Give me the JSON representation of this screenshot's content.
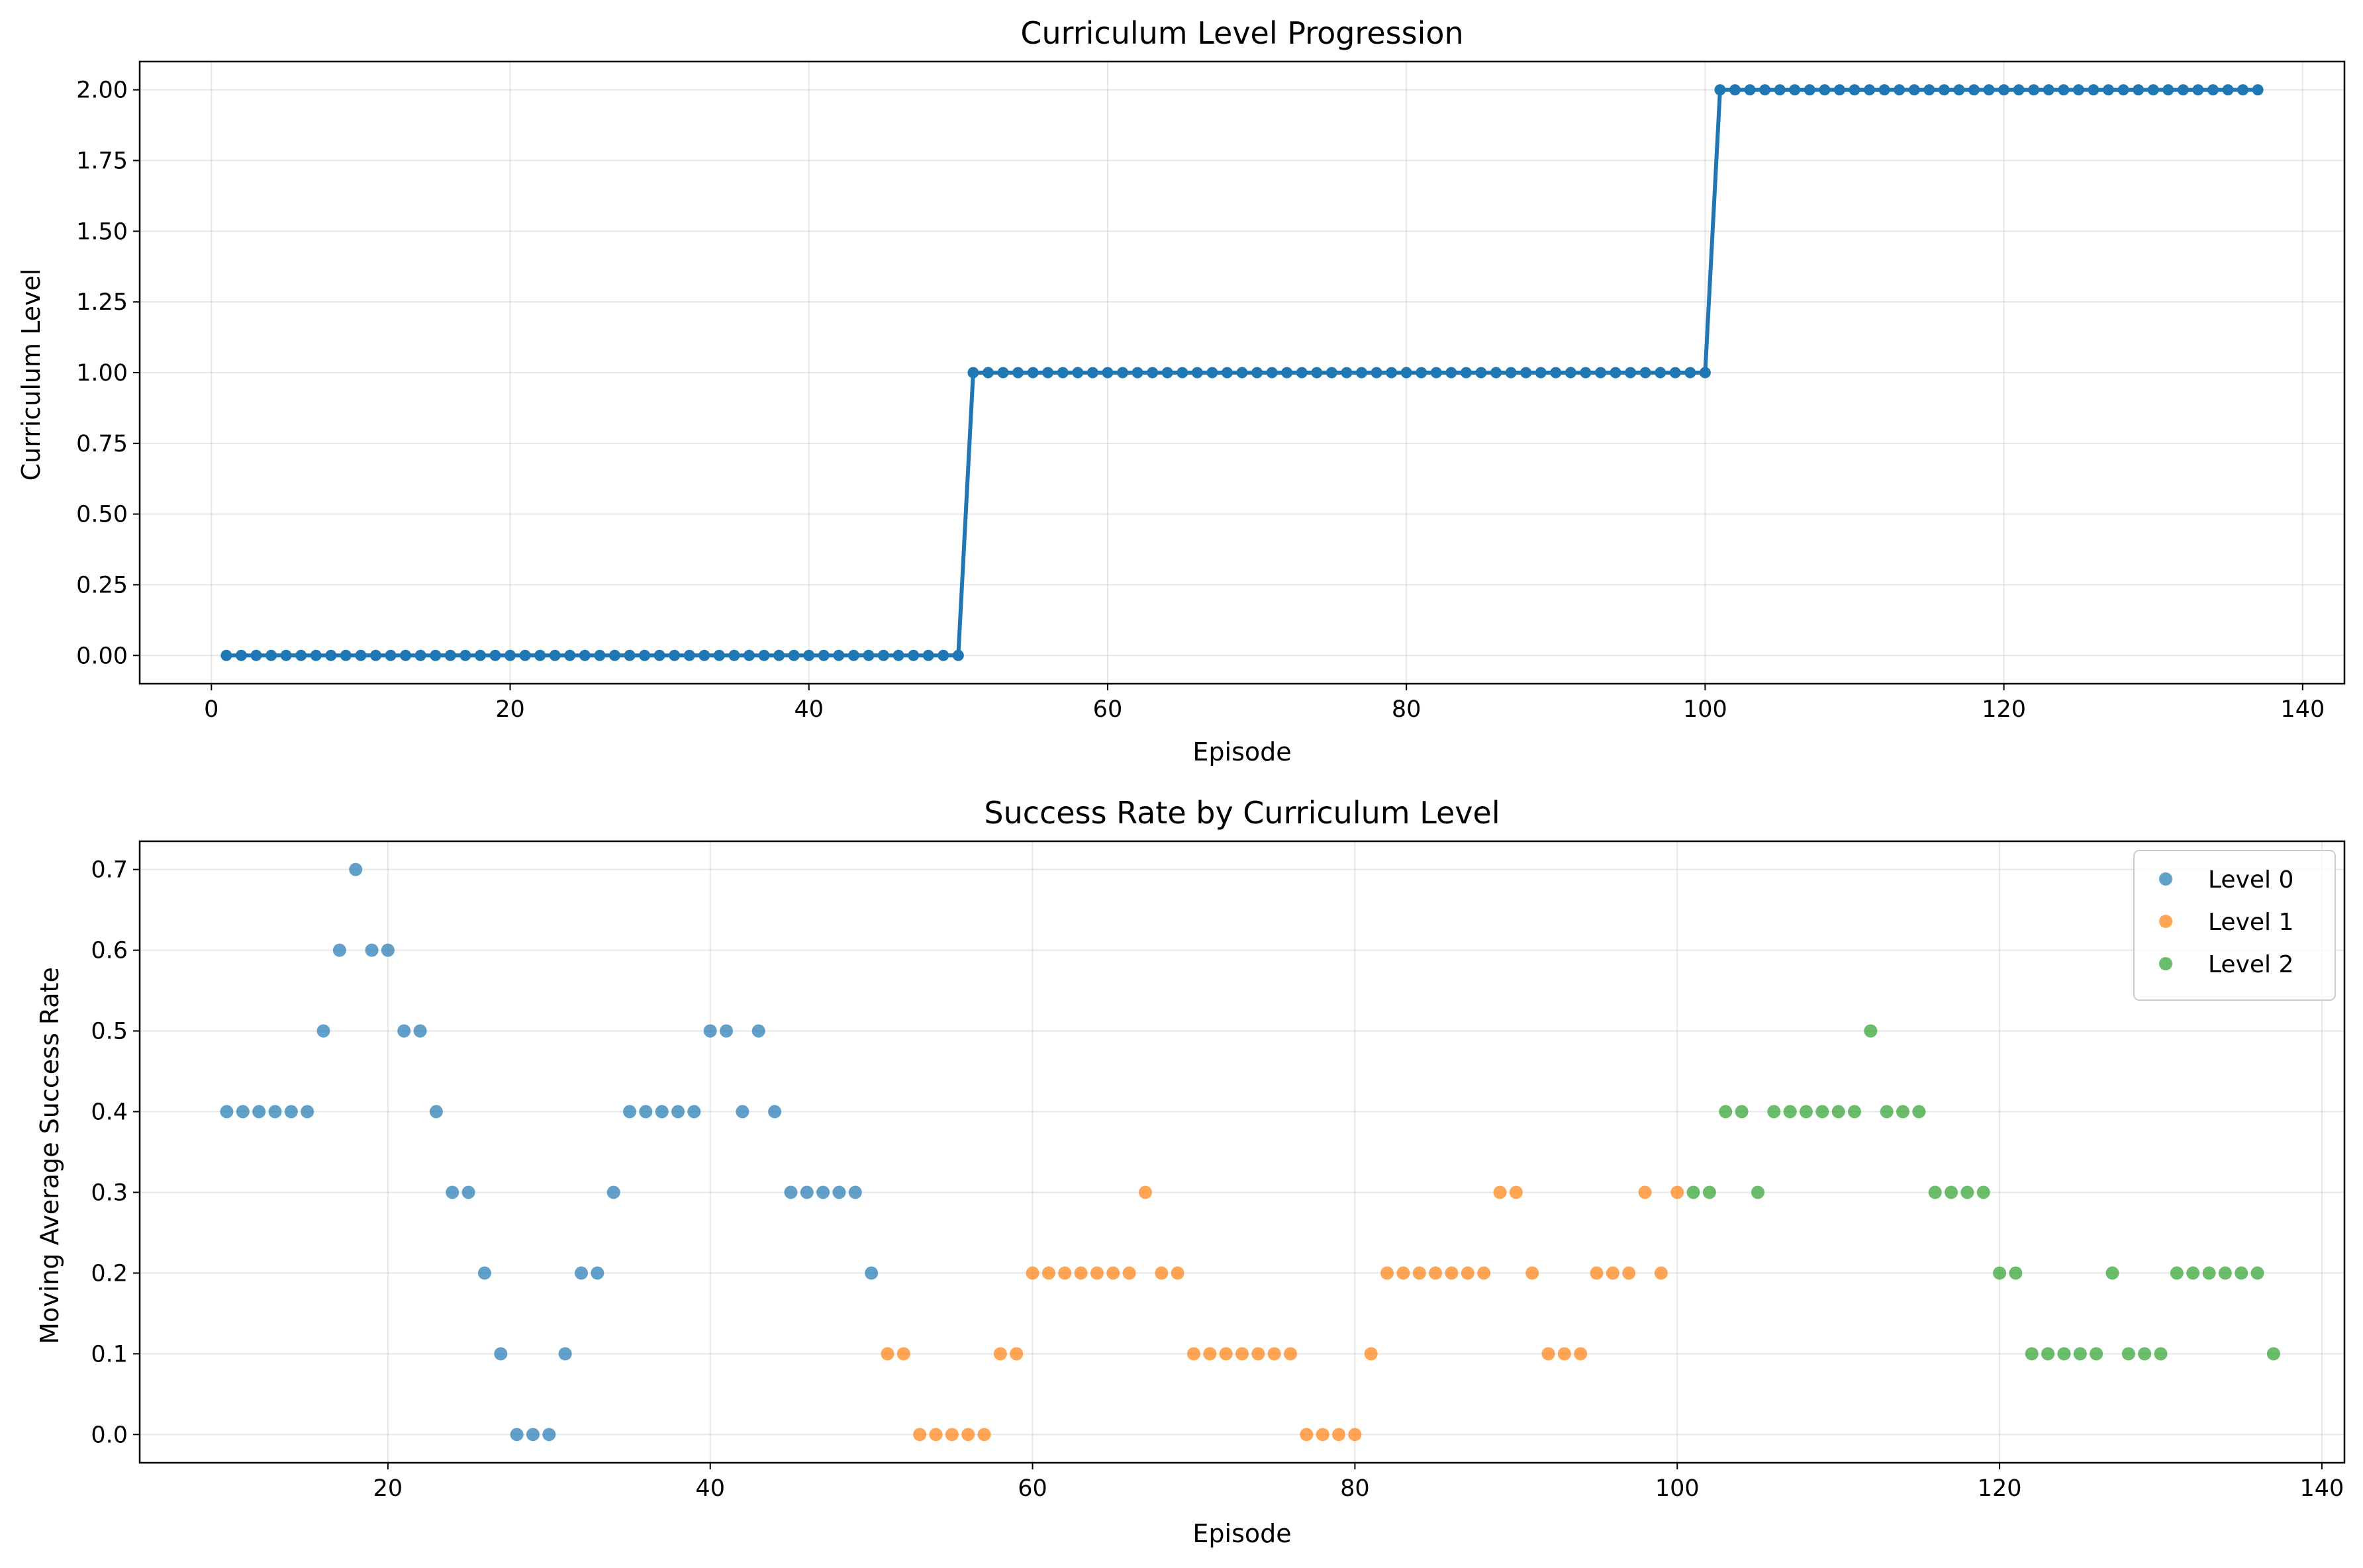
{
  "chart_data": [
    {
      "type": "line",
      "title": "Curriculum Level Progression",
      "xlabel": "Episode",
      "ylabel": "Curriculum Level",
      "xlim": [
        -4.8,
        142.8
      ],
      "ylim": [
        -0.1,
        2.1
      ],
      "xticks": [
        0,
        20,
        40,
        60,
        80,
        100,
        120,
        140
      ],
      "yticks": [
        0.0,
        0.25,
        0.5,
        0.75,
        1.0,
        1.25,
        1.5,
        1.75,
        2.0
      ],
      "ytick_labels": [
        "0.00",
        "0.25",
        "0.50",
        "0.75",
        "1.00",
        "1.25",
        "1.50",
        "1.75",
        "2.00"
      ],
      "grid": true,
      "color": "#1f77b4",
      "markers": "circle",
      "series": [
        {
          "x_range": [
            1,
            137
          ],
          "segments": [
            {
              "from": 1,
              "to": 50,
              "level": 0
            },
            {
              "from": 51,
              "to": 100,
              "level": 1
            },
            {
              "from": 101,
              "to": 137,
              "level": 2
            }
          ]
        }
      ]
    },
    {
      "type": "scatter",
      "title": "Success Rate by Curriculum Level",
      "xlabel": "Episode",
      "ylabel": "Moving Average Success Rate",
      "xlim": [
        4.6,
        141.4
      ],
      "ylim": [
        -0.035,
        0.735
      ],
      "xticks": [
        20,
        40,
        60,
        80,
        100,
        120,
        140
      ],
      "yticks": [
        0.0,
        0.1,
        0.2,
        0.3,
        0.4,
        0.5,
        0.6,
        0.7
      ],
      "ytick_labels": [
        "0.0",
        "0.1",
        "0.2",
        "0.3",
        "0.4",
        "0.5",
        "0.6",
        "0.7"
      ],
      "grid": true,
      "legend_position": "top-right",
      "x_start": 10,
      "series": [
        {
          "name": "Level 0",
          "color": "#1f77b4",
          "x_start": 10,
          "values": [
            0.4,
            0.4,
            0.4,
            0.4,
            0.4,
            0.4,
            0.5,
            0.6,
            0.7,
            0.6,
            0.6,
            0.5,
            0.5,
            0.4,
            0.3,
            0.3,
            0.2,
            0.1,
            0.0,
            0.0,
            0.0,
            0.1,
            0.2,
            0.2,
            0.3,
            0.4,
            0.4,
            0.4,
            0.4,
            0.4,
            0.5,
            0.5,
            0.4,
            0.5,
            0.4,
            0.3,
            0.3,
            0.3,
            0.3,
            0.3,
            0.2
          ]
        },
        {
          "name": "Level 1",
          "color": "#ff7f0e",
          "x_start": 51,
          "values": [
            0.1,
            0.1,
            0.0,
            0.0,
            0.0,
            0.0,
            0.0,
            0.1,
            0.1,
            0.2,
            0.2,
            0.2,
            0.2,
            0.2,
            0.2,
            0.2,
            0.3,
            0.2,
            0.2,
            0.1,
            0.1,
            0.1,
            0.1,
            0.1,
            0.1,
            0.1,
            0.0,
            0.0,
            0.0,
            0.0,
            0.1,
            0.2,
            0.2,
            0.2,
            0.2,
            0.2,
            0.2,
            0.2,
            0.3,
            0.3,
            0.2,
            0.1,
            0.1,
            0.1,
            0.2,
            0.2,
            0.2,
            0.3,
            0.2,
            0.3
          ]
        },
        {
          "name": "Level 2",
          "color": "#2ca02c",
          "x_start": 101,
          "values": [
            0.3,
            0.3,
            0.4,
            0.4,
            0.3,
            0.4,
            0.4,
            0.4,
            0.4,
            0.4,
            0.4,
            0.5,
            0.4,
            0.4,
            0.4,
            0.3,
            0.3,
            0.3,
            0.3,
            0.2,
            0.2,
            0.1,
            0.1,
            0.1,
            0.1,
            0.1,
            0.2,
            0.1,
            0.1,
            0.1,
            0.2,
            0.2,
            0.2,
            0.2,
            0.2,
            0.2,
            0.1
          ]
        }
      ]
    }
  ]
}
